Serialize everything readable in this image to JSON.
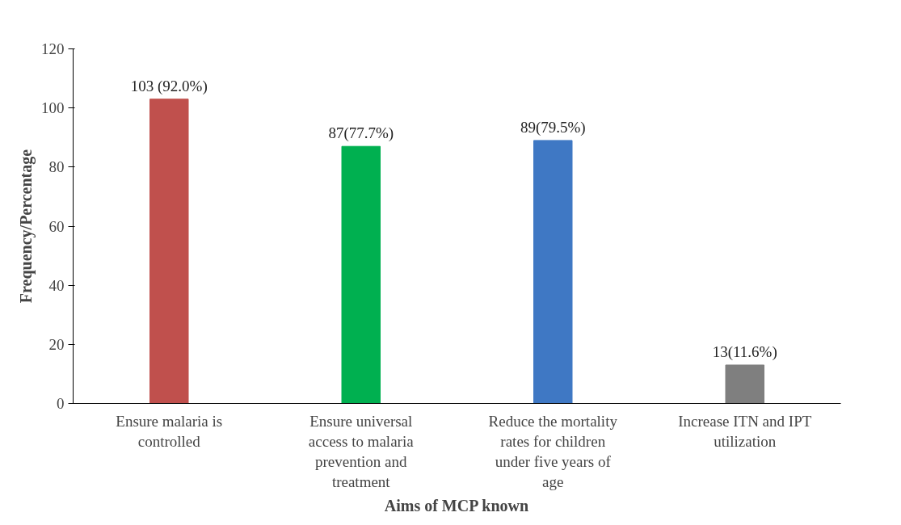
{
  "chart_data": {
    "type": "bar",
    "xlabel": "Aims of MCP known",
    "ylabel": "Frequency/Percentage",
    "categories": [
      "Ensure malaria is controlled",
      "Ensure universal access to malaria prevention and treatment",
      "Reduce the mortality rates for children under five years of age",
      "Increase ITN and IPT utilization"
    ],
    "values": [
      103,
      87,
      89,
      13
    ],
    "colors": [
      "#c0504d",
      "#00b050",
      "#3f78c4",
      "#7f7f7f"
    ],
    "value_labels": [
      "103 (92.0%)",
      "87(77.7%)",
      "89(79.5%)",
      "13(11.6%)"
    ],
    "ylim": [
      0,
      120
    ],
    "yticks": [
      0,
      20,
      40,
      60,
      80,
      100,
      120
    ],
    "grid": false
  }
}
